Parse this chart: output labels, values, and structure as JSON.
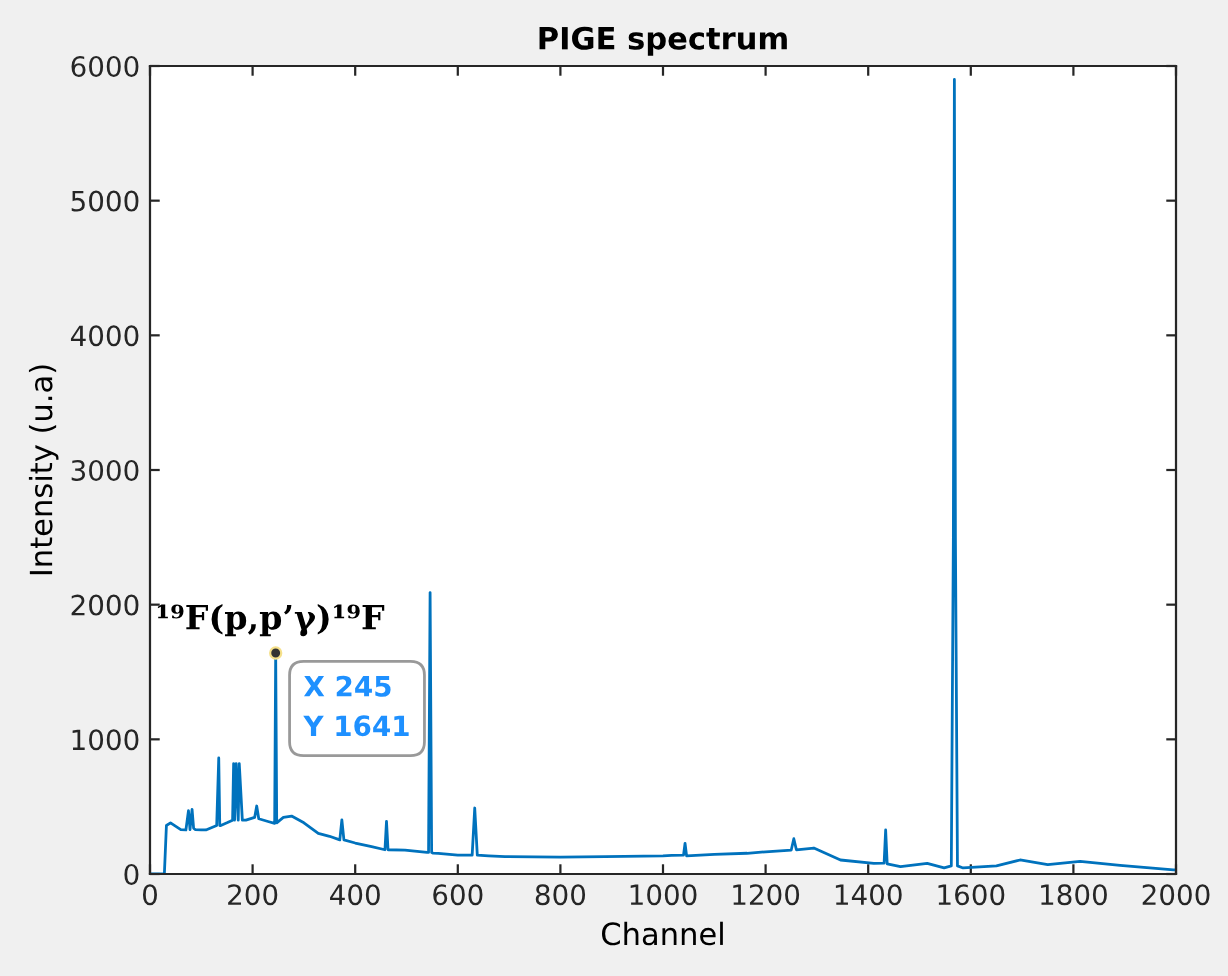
{
  "chart_data": {
    "type": "line",
    "title": "PIGE spectrum",
    "xlabel": "Channel",
    "ylabel": "Intensity (u.a)",
    "x": [
      0,
      28,
      32,
      40,
      60,
      70,
      75,
      78,
      82,
      85,
      88,
      100,
      109,
      130,
      134,
      136,
      138,
      150,
      161,
      163,
      165,
      168,
      172,
      174,
      180,
      187,
      204,
      208,
      212,
      230,
      243,
      245,
      247,
      260,
      276,
      300,
      328,
      350,
      370,
      374,
      378,
      400,
      432,
      458,
      461,
      464,
      497,
      540,
      543,
      546,
      549,
      552,
      562,
      600,
      628,
      633,
      638,
      660,
      692,
      800,
      887,
      1000,
      1017,
      1040,
      1043,
      1046,
      1100,
      1164,
      1200,
      1250,
      1255,
      1260,
      1294,
      1346,
      1411,
      1431,
      1434,
      1437,
      1463,
      1515,
      1548,
      1562,
      1566,
      1568,
      1570,
      1574,
      1585,
      1650,
      1696,
      1750,
      1813,
      1891,
      1995,
      2000
    ],
    "series": [
      {
        "color": "#0072bd",
        "values": [
          0,
          0,
          360,
          380,
          330,
          327,
          470,
          330,
          480,
          340,
          330,
          327,
          327,
          360,
          862,
          360,
          360,
          380,
          400,
          820,
          400,
          820,
          400,
          820,
          400,
          400,
          420,
          505,
          410,
          390,
          376,
          1641,
          380,
          420,
          430,
          380,
          302,
          280,
          253,
          401,
          253,
          230,
          203,
          180,
          391,
          180,
          178,
          160,
          160,
          2090,
          160,
          155,
          153,
          140,
          140,
          490,
          140,
          135,
          129,
          125,
          129,
          135,
          139,
          140,
          228,
          135,
          145,
          154,
          165,
          178,
          262,
          180,
          193,
          104,
          79,
          80,
          327,
          75,
          55,
          79,
          45,
          60,
          2500,
          5900,
          2500,
          60,
          45,
          60,
          104,
          70,
          94,
          64,
          30,
          30
        ]
      }
    ],
    "xlim": [
      0,
      2000
    ],
    "ylim": [
      0,
      6000
    ],
    "xticks": [
      0,
      200,
      400,
      600,
      800,
      1000,
      1200,
      1400,
      1600,
      1800,
      2000
    ],
    "yticks": [
      0,
      1000,
      2000,
      3000,
      4000,
      5000,
      6000
    ],
    "annotations": [
      {
        "text": "¹⁹F(p,p’γ)¹⁹F",
        "x": 245,
        "y": 1641
      },
      {
        "text": "X 245\nY 1641",
        "x": 245,
        "y": 1641
      }
    ],
    "grid": false,
    "legend": false,
    "marker": "none",
    "line_style": "solid"
  }
}
